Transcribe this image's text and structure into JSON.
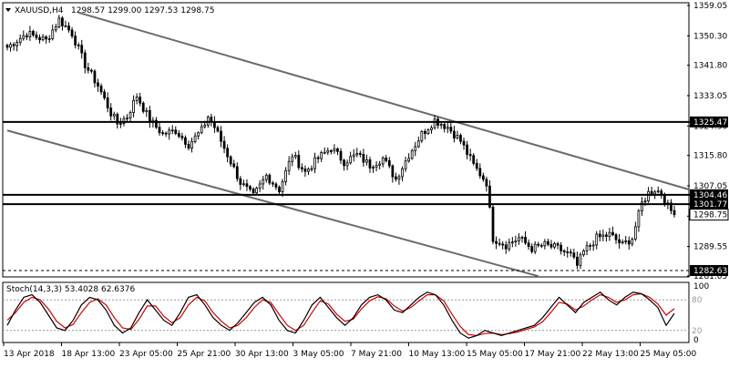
{
  "chart_data": {
    "type": "candlestick",
    "symbol": "XAUUSD,H4",
    "ohlc_text": "1298.57 1299.00 1297.53 1298.75",
    "price_ticks": [
      "1359.05",
      "1350.30",
      "1341.80",
      "1333.05",
      "1324.30",
      "1315.80",
      "1307.05",
      "1298.30",
      "1289.55",
      "1281.05"
    ],
    "price_tick_values": [
      1359.05,
      1350.3,
      1341.8,
      1333.05,
      1324.3,
      1315.8,
      1307.05,
      1298.3,
      1289.55,
      1281.05
    ],
    "ylim": [
      1281.05,
      1359.05
    ],
    "time_labels": [
      "13 Apr 2018",
      "18 Apr 13:00",
      "23 Apr 05:00",
      "25 Apr 21:00",
      "30 Apr 13:00",
      "3 May 05:00",
      "7 May 21:00",
      "10 May 13:00",
      "15 May 05:00",
      "17 May 21:00",
      "22 May 13:00",
      "25 May 05:00"
    ],
    "horizontal_levels": [
      {
        "label": "1325.47",
        "value": 1325.47,
        "style": "solid"
      },
      {
        "label": "1304.46",
        "value": 1304.46,
        "style": "solid"
      },
      {
        "label": "1301.77",
        "value": 1301.77,
        "style": "solid"
      },
      {
        "label": "1282.63",
        "value": 1282.63,
        "style": "dashed"
      }
    ],
    "current_price": {
      "label": "1298.75",
      "value": 1298.75
    },
    "anchors": [
      [
        0,
        1347
      ],
      [
        6,
        1351
      ],
      [
        12,
        1349
      ],
      [
        16,
        1355
      ],
      [
        20,
        1351
      ],
      [
        24,
        1342
      ],
      [
        28,
        1336
      ],
      [
        32,
        1328
      ],
      [
        34,
        1325
      ],
      [
        37,
        1327
      ],
      [
        40,
        1333
      ],
      [
        44,
        1326
      ],
      [
        48,
        1322
      ],
      [
        52,
        1323
      ],
      [
        56,
        1319
      ],
      [
        60,
        1323
      ],
      [
        62,
        1327
      ],
      [
        64,
        1324
      ],
      [
        68,
        1316
      ],
      [
        72,
        1308
      ],
      [
        76,
        1304
      ],
      [
        80,
        1310
      ],
      [
        84,
        1306
      ],
      [
        88,
        1316
      ],
      [
        92,
        1311
      ],
      [
        96,
        1315
      ],
      [
        100,
        1318
      ],
      [
        104,
        1314
      ],
      [
        108,
        1316
      ],
      [
        112,
        1313
      ],
      [
        116,
        1315
      ],
      [
        120,
        1309
      ],
      [
        124,
        1316
      ],
      [
        128,
        1322
      ],
      [
        132,
        1326
      ],
      [
        136,
        1324
      ],
      [
        140,
        1320
      ],
      [
        144,
        1313
      ],
      [
        148,
        1308
      ],
      [
        150,
        1292
      ],
      [
        154,
        1290
      ],
      [
        158,
        1292
      ],
      [
        162,
        1289
      ],
      [
        166,
        1290
      ],
      [
        170,
        1289
      ],
      [
        174,
        1287
      ],
      [
        176,
        1284
      ],
      [
        178,
        1288
      ],
      [
        182,
        1292
      ],
      [
        186,
        1293
      ],
      [
        190,
        1290
      ],
      [
        193,
        1292
      ],
      [
        196,
        1302
      ],
      [
        198,
        1305
      ],
      [
        200,
        1306
      ],
      [
        202,
        1305
      ],
      [
        204,
        1301
      ],
      [
        206,
        1298.75
      ]
    ],
    "total_candles": 207,
    "channel_lines": [
      {
        "from": [
          22,
          1357
        ],
        "to": [
          218,
          1306
        ]
      },
      {
        "from": [
          0,
          1323
        ],
        "to": [
          164,
          1281
        ]
      }
    ],
    "stochastic": {
      "label": "Stoch(14,3,3) 53.4028 62.6376",
      "ylim": [
        0,
        100
      ],
      "levels": [
        80,
        20
      ],
      "level_labels": [
        "80",
        "20"
      ],
      "scale_labels": [
        "100",
        "0"
      ],
      "k": [
        30,
        60,
        85,
        90,
        75,
        50,
        25,
        20,
        40,
        70,
        85,
        80,
        60,
        30,
        15,
        25,
        55,
        80,
        60,
        40,
        30,
        55,
        85,
        90,
        70,
        45,
        30,
        20,
        35,
        55,
        75,
        85,
        70,
        40,
        20,
        15,
        40,
        70,
        85,
        65,
        45,
        30,
        45,
        70,
        85,
        90,
        80,
        60,
        55,
        70,
        85,
        95,
        90,
        70,
        40,
        15,
        5,
        10,
        20,
        15,
        10,
        15,
        20,
        25,
        30,
        45,
        65,
        85,
        70,
        55,
        75,
        85,
        95,
        80,
        70,
        85,
        95,
        92,
        80,
        65,
        30,
        53.4028
      ],
      "d": [
        40,
        55,
        75,
        85,
        80,
        62,
        38,
        25,
        32,
        55,
        75,
        82,
        70,
        45,
        25,
        22,
        42,
        68,
        68,
        48,
        35,
        45,
        70,
        85,
        78,
        55,
        38,
        25,
        30,
        45,
        65,
        80,
        75,
        52,
        30,
        20,
        30,
        55,
        78,
        72,
        52,
        38,
        42,
        62,
        78,
        86,
        82,
        68,
        58,
        65,
        78,
        90,
        90,
        78,
        52,
        28,
        12,
        10,
        14,
        15,
        12,
        14,
        17,
        22,
        27,
        37,
        55,
        75,
        72,
        60,
        68,
        80,
        90,
        85,
        75,
        80,
        90,
        92,
        85,
        72,
        50,
        62.6376
      ]
    }
  }
}
